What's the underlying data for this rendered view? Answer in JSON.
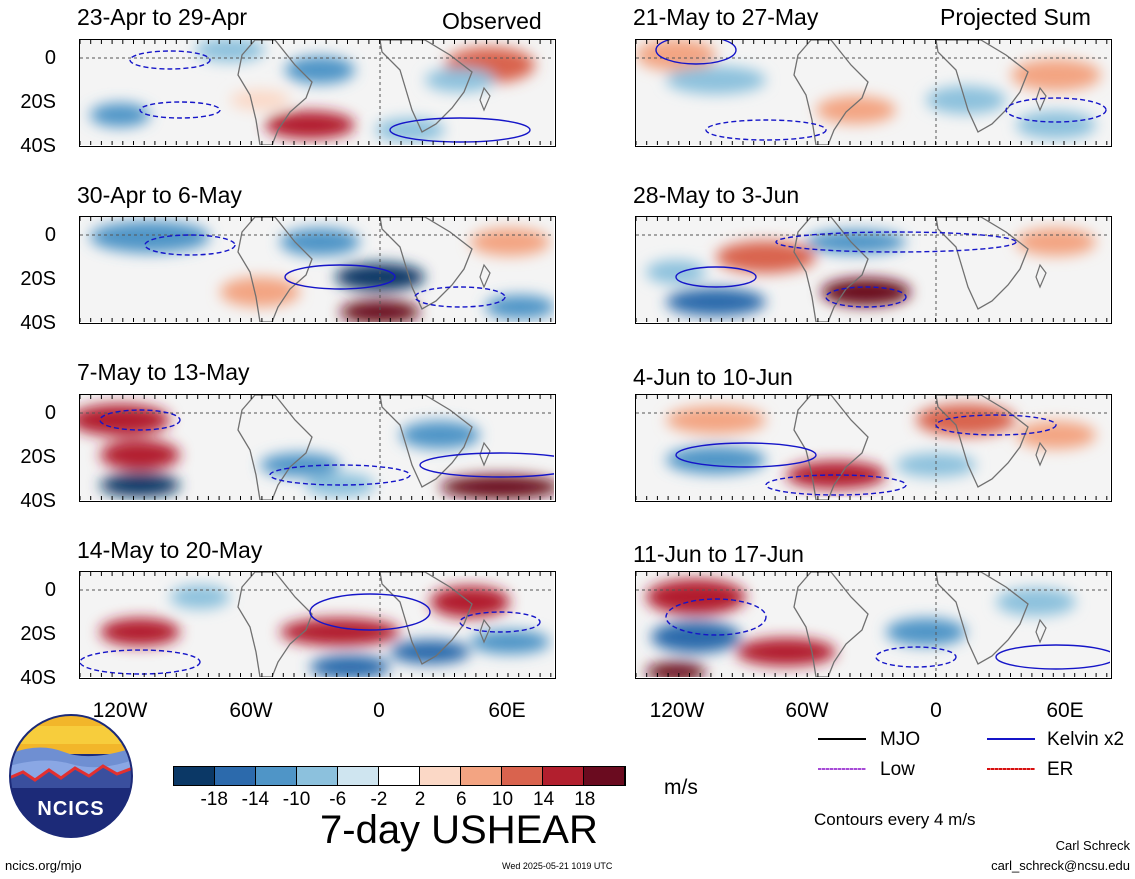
{
  "header": {
    "observed_label": "Observed",
    "projected_label": "Projected Sum"
  },
  "panels": [
    {
      "title": "23-Apr to 29-Apr"
    },
    {
      "title": "30-Apr to 6-May"
    },
    {
      "title": "7-May to 13-May"
    },
    {
      "title": "14-May to 20-May"
    },
    {
      "title": "21-May to 27-May"
    },
    {
      "title": "28-May to 3-Jun"
    },
    {
      "title": "4-Jun to 10-Jun"
    },
    {
      "title": "11-Jun to 17-Jun"
    }
  ],
  "lat_labels": [
    "0",
    "20S",
    "40S"
  ],
  "lon_labels": [
    "120W",
    "60W",
    "0",
    "60E"
  ],
  "colorbar": {
    "colors": [
      "#0b3866",
      "#2c6aac",
      "#4f95c7",
      "#8cc1dd",
      "#cfe5f0",
      "#ffffff",
      "#fbd8c6",
      "#f3a482",
      "#d9634e",
      "#b21f2e",
      "#6a0b1f"
    ],
    "tick_labels": [
      "-18",
      "-14",
      "-10",
      "-6",
      "-2",
      "2",
      "6",
      "10",
      "14",
      "18"
    ],
    "units": "m/s"
  },
  "legend": {
    "items": [
      {
        "label": "MJO",
        "color": "#000000"
      },
      {
        "label": "Kelvin x2",
        "color": "#1515c8"
      },
      {
        "label": "Low",
        "color": "#a64bd6"
      },
      {
        "label": "ER",
        "color": "#d61010"
      }
    ],
    "contour_note": "Contours every 4 m/s"
  },
  "footer": {
    "chart_title": "7-day USHEAR",
    "url": "ncics.org/mjo",
    "timestamp": "Wed 2025-05-21 1019 UTC",
    "author": "Carl Schreck",
    "email": "carl_schreck@ncsu.edu",
    "logo_text": "NCICS"
  }
}
